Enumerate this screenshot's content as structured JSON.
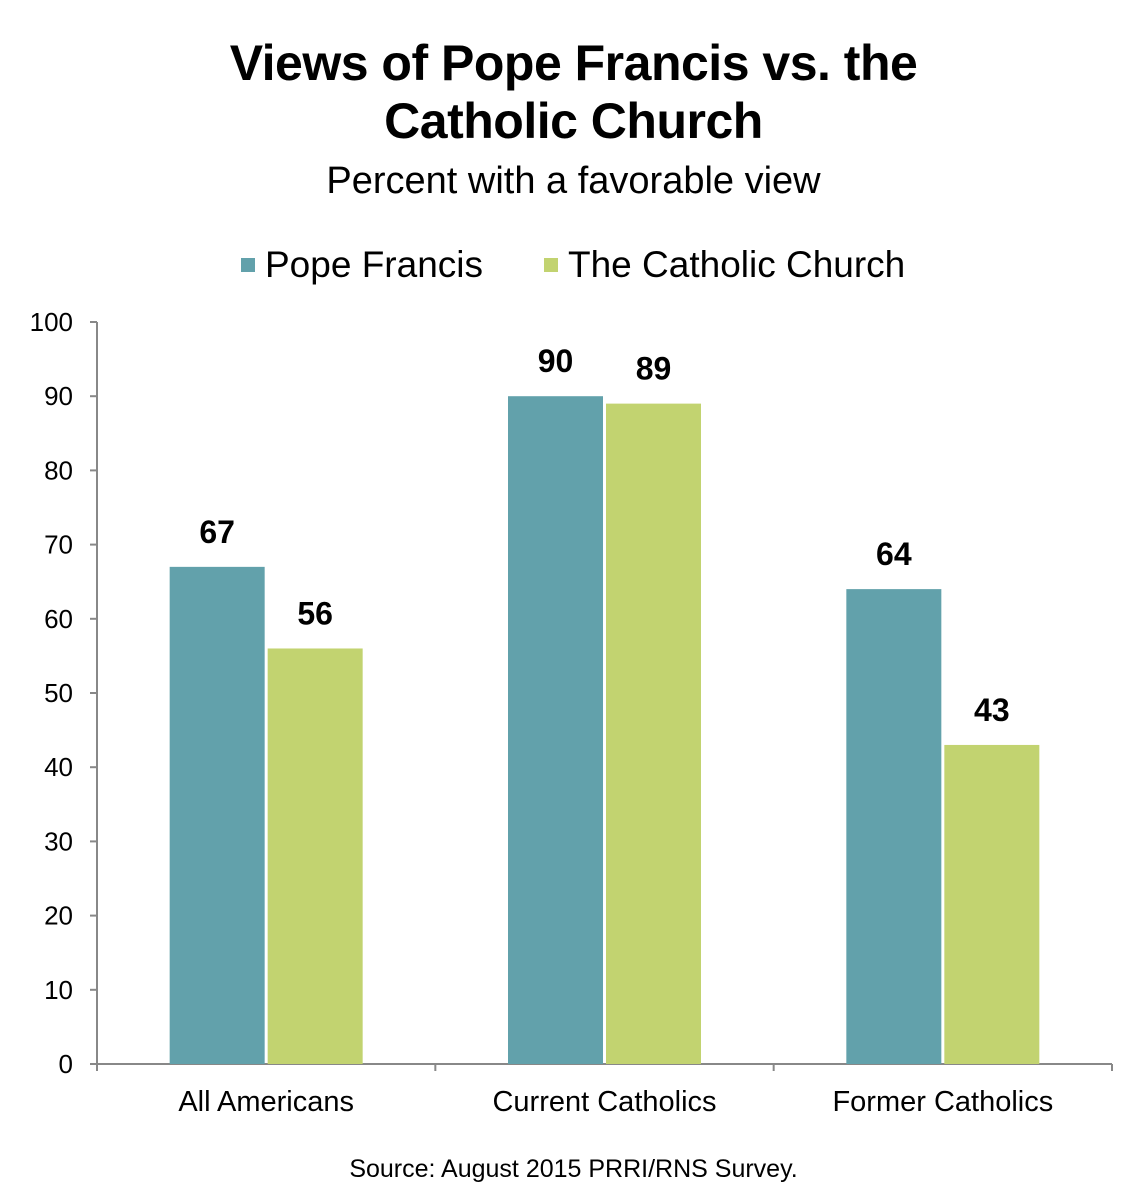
{
  "chart_data": {
    "type": "bar",
    "title_lines": [
      "Views of Pope Francis vs. the",
      "Catholic Church"
    ],
    "subtitle": "Percent with a favorable view",
    "categories": [
      "All Americans",
      "Current Catholics",
      "Former Catholics"
    ],
    "series": [
      {
        "name": "Pope Francis",
        "color": "#62a1ab",
        "values": [
          67,
          90,
          64
        ]
      },
      {
        "name": "The Catholic Church",
        "color": "#c2d370",
        "values": [
          56,
          89,
          43
        ]
      }
    ],
    "ylim": [
      0,
      100
    ],
    "yticks": [
      "0",
      "10",
      "20",
      "30",
      "40",
      "50",
      "60",
      "70",
      "80",
      "90",
      "100"
    ],
    "xlabel": "",
    "ylabel": "",
    "grid": false,
    "legend_position": "top",
    "source": "Source: August 2015 PRRI/RNS Survey."
  }
}
